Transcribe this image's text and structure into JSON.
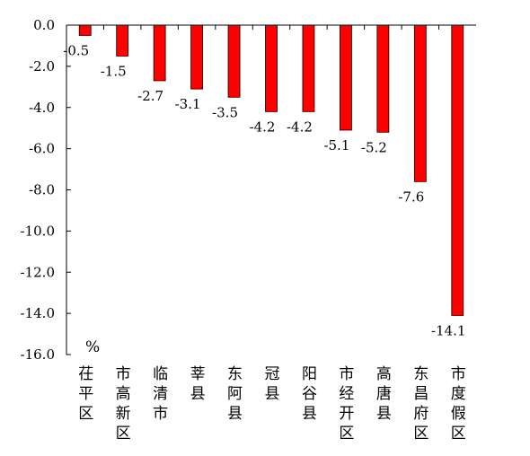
{
  "chart_data": {
    "type": "bar",
    "title": "",
    "xlabel": "",
    "ylabel": "",
    "unit": "%",
    "ylim": [
      -16,
      0
    ],
    "yticks": [
      0,
      -2,
      -4,
      -6,
      -8,
      -10,
      -12,
      -14,
      -16
    ],
    "ytick_labels": [
      "0.0",
      "-2.0",
      "-4.0",
      "-6.0",
      "-8.0",
      "-10.0",
      "-12.0",
      "-14.0",
      "-16.0"
    ],
    "grid": false,
    "bar_color": "#ff0000",
    "categories": [
      "茌平区",
      "市高新区",
      "临清市",
      "莘县",
      "东阿县",
      "冠县",
      "阳谷县",
      "市经开区",
      "高唐县",
      "东昌府区",
      "市度假区"
    ],
    "values": [
      -0.5,
      -1.5,
      -2.7,
      -3.1,
      -3.5,
      -4.2,
      -4.2,
      -5.1,
      -5.2,
      -7.6,
      -14.1
    ],
    "data_labels": [
      "-0.5",
      "-1.5",
      "-2.7",
      "-3.1",
      "-3.5",
      "-4.2",
      "-4.2",
      "-5.1",
      "-5.2",
      "-7.6",
      "-14.1"
    ]
  }
}
